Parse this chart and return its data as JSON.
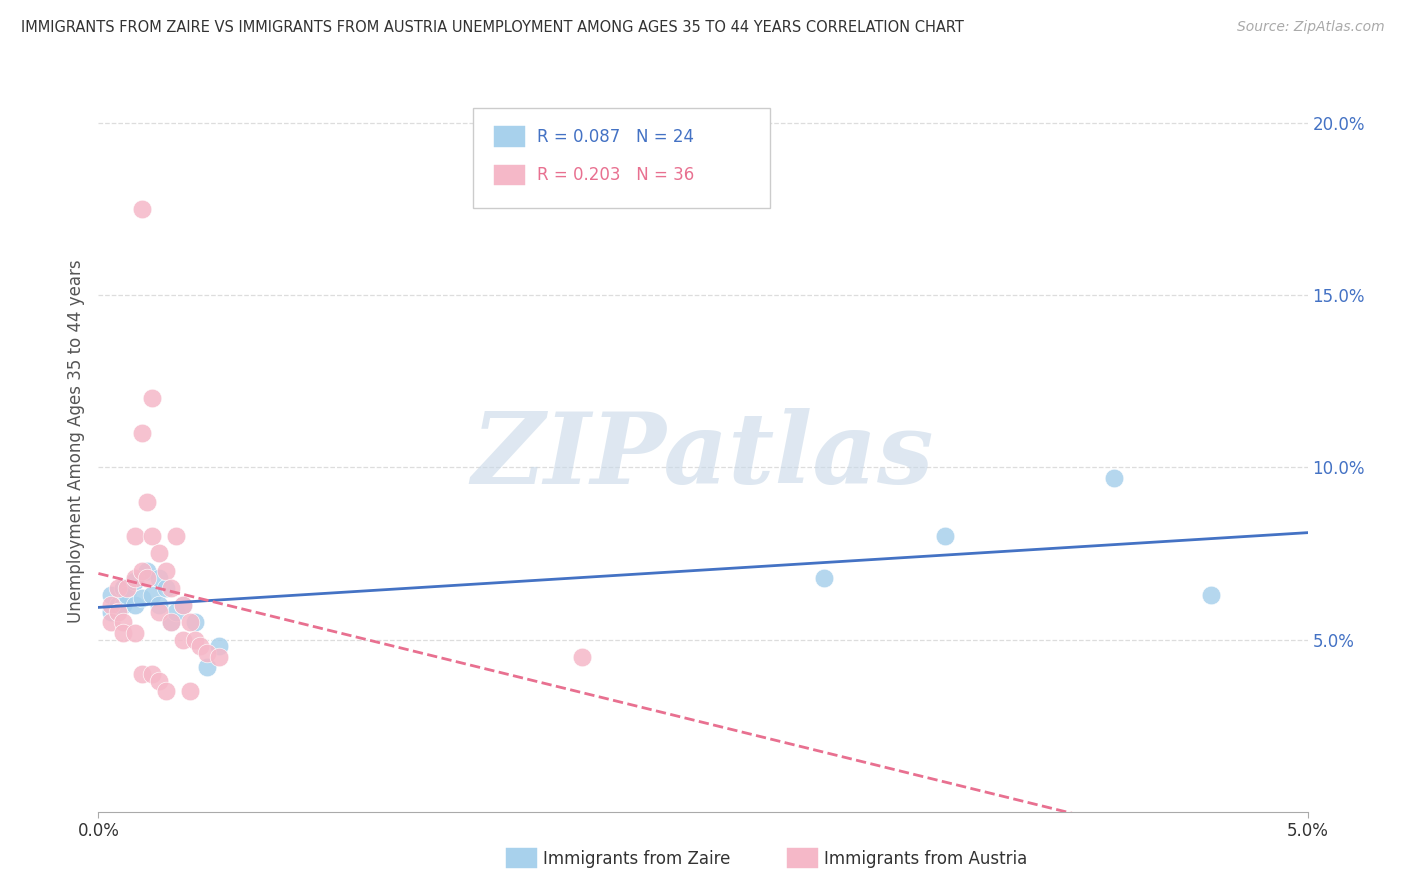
{
  "title": "IMMIGRANTS FROM ZAIRE VS IMMIGRANTS FROM AUSTRIA UNEMPLOYMENT AMONG AGES 35 TO 44 YEARS CORRELATION CHART",
  "source": "Source: ZipAtlas.com",
  "ylabel": "Unemployment Among Ages 35 to 44 years",
  "label_zaire": "Immigrants from Zaire",
  "label_austria": "Immigrants from Austria",
  "xlim": [
    0.0,
    0.05
  ],
  "ylim": [
    0.0,
    0.215
  ],
  "xticks": [
    0.0,
    0.05
  ],
  "xtick_labels": [
    "0.0%",
    "5.0%"
  ],
  "yticks": [
    0.05,
    0.1,
    0.15,
    0.2
  ],
  "ytick_labels": [
    "5.0%",
    "10.0%",
    "15.0%",
    "20.0%"
  ],
  "zaire_R": 0.087,
  "zaire_N": 24,
  "austria_R": 0.203,
  "austria_N": 36,
  "blue_color": "#a8d1ec",
  "pink_color": "#f5b8c8",
  "blue_line_color": "#4472c4",
  "pink_line_color": "#e87090",
  "ytick_color": "#4472c4",
  "watermark": "ZIPatlas",
  "zaire_x": [
    0.0005,
    0.0005,
    0.0008,
    0.001,
    0.001,
    0.0012,
    0.0015,
    0.0015,
    0.0018,
    0.002,
    0.0022,
    0.0025,
    0.0025,
    0.0028,
    0.003,
    0.0032,
    0.0035,
    0.004,
    0.0045,
    0.005,
    0.03,
    0.035,
    0.042,
    0.046
  ],
  "zaire_y": [
    0.058,
    0.063,
    0.06,
    0.065,
    0.06,
    0.063,
    0.06,
    0.067,
    0.062,
    0.07,
    0.063,
    0.068,
    0.06,
    0.065,
    0.055,
    0.058,
    0.06,
    0.055,
    0.042,
    0.048,
    0.068,
    0.08,
    0.097,
    0.063
  ],
  "austria_x": [
    0.0005,
    0.0005,
    0.0008,
    0.0008,
    0.001,
    0.001,
    0.0012,
    0.0015,
    0.0015,
    0.0015,
    0.0018,
    0.0018,
    0.0018,
    0.0018,
    0.002,
    0.002,
    0.0022,
    0.0022,
    0.0022,
    0.0025,
    0.0025,
    0.0025,
    0.0028,
    0.0028,
    0.003,
    0.003,
    0.0032,
    0.0035,
    0.0035,
    0.0038,
    0.0038,
    0.004,
    0.0042,
    0.0045,
    0.005,
    0.02
  ],
  "austria_y": [
    0.06,
    0.055,
    0.065,
    0.058,
    0.055,
    0.052,
    0.065,
    0.08,
    0.068,
    0.052,
    0.175,
    0.11,
    0.07,
    0.04,
    0.09,
    0.068,
    0.12,
    0.08,
    0.04,
    0.075,
    0.058,
    0.038,
    0.07,
    0.035,
    0.065,
    0.055,
    0.08,
    0.06,
    0.05,
    0.055,
    0.035,
    0.05,
    0.048,
    0.046,
    0.045,
    0.045
  ],
  "grid_color": "#dddddd",
  "background_color": "#ffffff"
}
